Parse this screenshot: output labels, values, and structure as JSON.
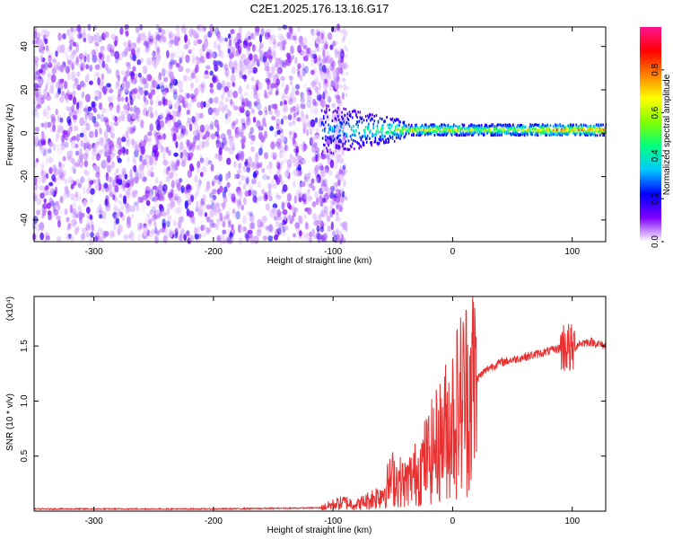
{
  "figure": {
    "title": "C2E1.2025.176.13.16.G17"
  },
  "chart_data": [
    {
      "type": "heatmap",
      "xlabel": "Height of straight line (km)",
      "ylabel": "Frequency (Hz)",
      "xlim": [
        -350,
        128
      ],
      "ylim": [
        -50,
        49
      ],
      "xticks": [
        -300,
        -200,
        -100,
        0,
        100
      ],
      "yticks": [
        -40,
        -20,
        0,
        20,
        40
      ],
      "colorbar": {
        "label": "Normalized spectral amplitude",
        "range": [
          0.0,
          1.0
        ],
        "ticks": [
          0.0,
          0.2,
          0.4,
          0.6,
          0.8
        ],
        "tick_labels": [
          "0.0",
          "0.2",
          "0.4",
          "0.6",
          "0.8"
        ],
        "colors": [
          "#ffffff",
          "#7f00ff",
          "#0000ff",
          "#00c8ff",
          "#00ff80",
          "#80ff00",
          "#ffff00",
          "#ff8000",
          "#ff0000",
          "#ff1493"
        ]
      },
      "features": {
        "noise_region_x": [
          -350,
          -110
        ],
        "noise_level": 0.15,
        "carrier_start_x": -110,
        "carrier_frequency": 1.5,
        "carrier_peak": [
          {
            "x": -110,
            "v": 0.3
          },
          {
            "x": -80,
            "v": 0.45
          },
          {
            "x": -50,
            "v": 0.6
          },
          {
            "x": -20,
            "v": 0.8
          },
          {
            "x": 20,
            "v": 0.7
          },
          {
            "x": 60,
            "v": 0.75
          },
          {
            "x": 90,
            "v": 0.95
          },
          {
            "x": 128,
            "v": 0.9
          }
        ]
      }
    },
    {
      "type": "line",
      "xlabel": "Height of straight line (km)",
      "ylabel": "SNR (10 * v/v)",
      "multiplier": "(x10⁴)",
      "xlim": [
        -350,
        128
      ],
      "ylim": [
        0,
        1.95
      ],
      "xticks": [
        -300,
        -200,
        -100,
        0,
        100
      ],
      "yticks": [
        0.5,
        1.0,
        1.5
      ],
      "ytick_labels": [
        "0.5",
        "1.0",
        "1.5"
      ],
      "series": [
        {
          "color": "#e83030",
          "x": [
            -350,
            -200,
            -110,
            -100,
            -90,
            -80,
            -70,
            -60,
            -50,
            -40,
            -30,
            -20,
            -10,
            0,
            10,
            20,
            30,
            40,
            60,
            80,
            95,
            100,
            105,
            115,
            128
          ],
          "y": [
            0.02,
            0.02,
            0.03,
            0.06,
            0.08,
            0.06,
            0.1,
            0.15,
            0.3,
            0.25,
            0.35,
            0.5,
            0.65,
            0.85,
            1.05,
            1.2,
            1.3,
            1.35,
            1.4,
            1.45,
            1.5,
            1.45,
            1.52,
            1.54,
            1.5
          ]
        }
      ]
    }
  ]
}
